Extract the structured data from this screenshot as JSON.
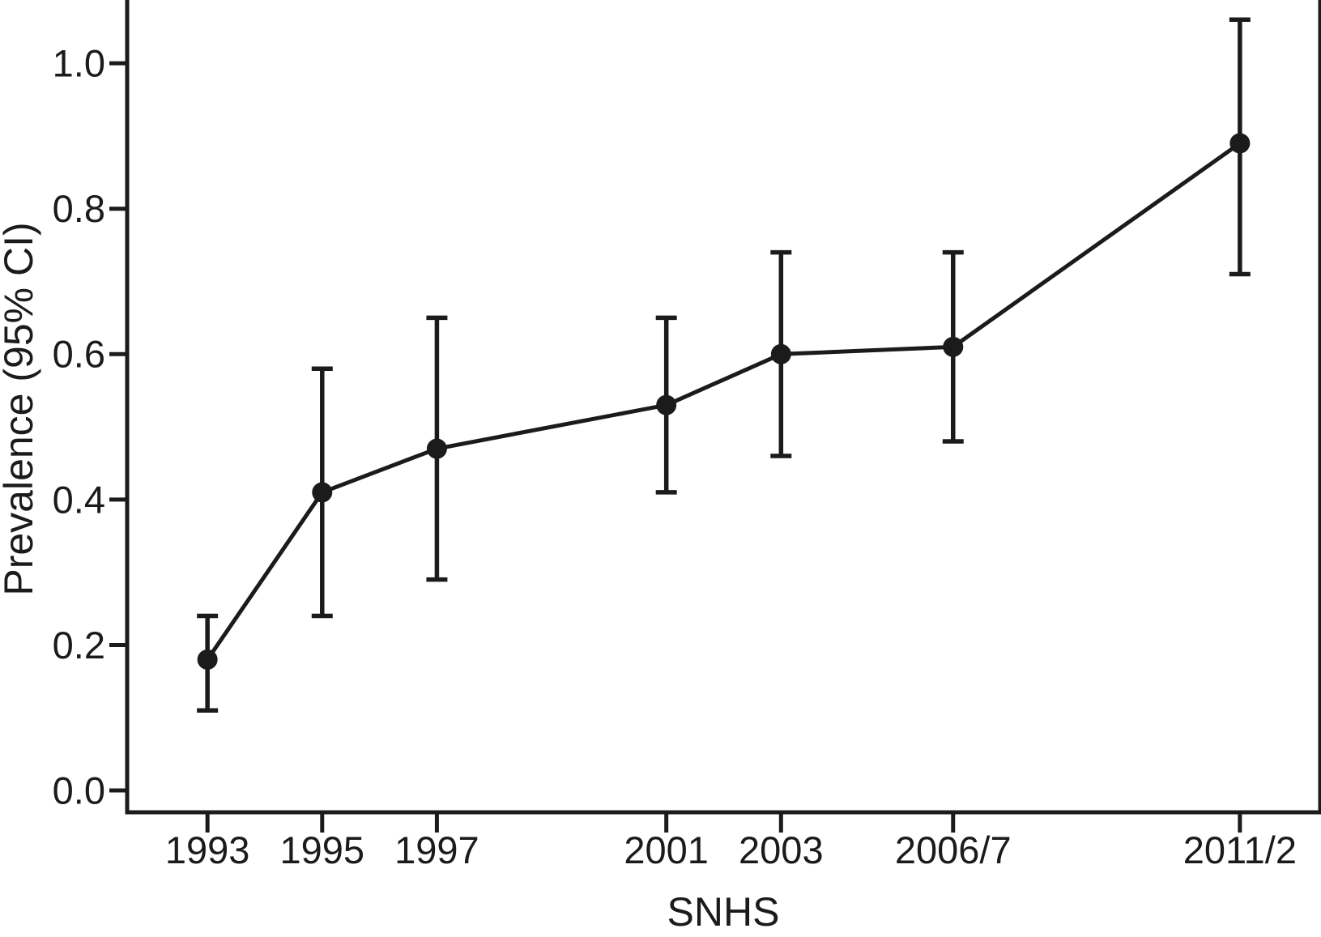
{
  "chart_data": {
    "type": "line",
    "title": "",
    "xlabel": "SNHS",
    "ylabel": "Prevalence (95% CI)",
    "categories": [
      "1993",
      "1995",
      "1997",
      "2001",
      "2003",
      "2006/7",
      "2011/2"
    ],
    "x_numeric": [
      1993,
      1995,
      1997,
      2001,
      2003,
      2006,
      2011
    ],
    "series": [
      {
        "name": "prevalence",
        "values": [
          0.18,
          0.41,
          0.47,
          0.53,
          0.6,
          0.61,
          0.89
        ],
        "ci_lower": [
          0.11,
          0.24,
          0.29,
          0.41,
          0.46,
          0.48,
          0.71
        ],
        "ci_upper": [
          0.24,
          0.58,
          0.65,
          0.65,
          0.74,
          0.74,
          1.06
        ]
      }
    ],
    "y_tick_labels": [
      "0.0",
      "0.2",
      "0.4",
      "0.6",
      "0.8",
      "1.0"
    ],
    "ylim": [
      -0.03,
      1.087
    ],
    "xlim": [
      1991.6,
      2012.4
    ],
    "grid": false,
    "legend": "none",
    "marker": "filled-circle",
    "error_bars": "95% CI with caps",
    "colors": {
      "line": "#1b1b1b",
      "marker": "#1b1b1b",
      "axis": "#1b1b1b",
      "text": "#1b1b1b",
      "background": "#ffffff"
    }
  }
}
